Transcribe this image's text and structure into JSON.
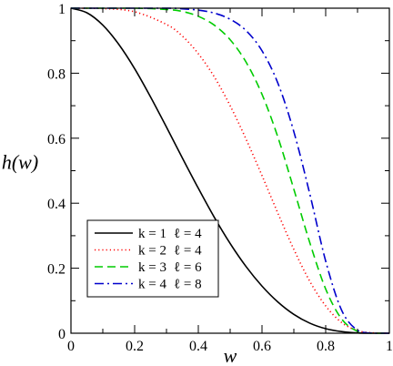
{
  "chart_data": {
    "type": "line",
    "title": "",
    "xlabel": "w",
    "ylabel": "h(w)",
    "xlim": [
      0,
      1
    ],
    "ylim": [
      0,
      1
    ],
    "x_ticks": [
      "0",
      "0.2",
      "0.4",
      "0.6",
      "0.8",
      "1"
    ],
    "y_ticks": [
      "0",
      "0.2",
      "0.4",
      "0.6",
      "0.8",
      "1"
    ],
    "grid": false,
    "legend_position": "bottom-left",
    "series": [
      {
        "name": "k = 1  ℓ = 4",
        "k_label": "k = 1",
        "l_label": "ℓ = 4",
        "color": "#000000",
        "dash": "solid",
        "x": [
          0,
          0.05,
          0.1,
          0.15,
          0.2,
          0.25,
          0.3,
          0.35,
          0.4,
          0.45,
          0.5,
          0.55,
          0.6,
          0.65,
          0.7,
          0.75,
          0.8,
          0.85,
          0.9,
          0.95,
          1.0
        ],
        "y": [
          1.0,
          0.986,
          0.948,
          0.889,
          0.814,
          0.727,
          0.634,
          0.539,
          0.446,
          0.357,
          0.276,
          0.205,
          0.145,
          0.096,
          0.058,
          0.031,
          0.014,
          0.005,
          0.001,
          0.0,
          0.0
        ]
      },
      {
        "name": "k = 2  ℓ = 4",
        "k_label": "k = 2",
        "l_label": "ℓ = 4",
        "color": "#ff0000",
        "dash": "dotted",
        "x": [
          0,
          0.1,
          0.2,
          0.3,
          0.35,
          0.4,
          0.45,
          0.5,
          0.55,
          0.6,
          0.65,
          0.7,
          0.75,
          0.8,
          0.85,
          0.9,
          0.95,
          1.0
        ],
        "y": [
          1.0,
          0.999,
          0.989,
          0.95,
          0.914,
          0.86,
          0.789,
          0.7,
          0.597,
          0.485,
          0.369,
          0.258,
          0.16,
          0.084,
          0.033,
          0.008,
          0.001,
          0.0
        ]
      },
      {
        "name": "k = 3  ℓ = 6",
        "k_label": "k = 3",
        "l_label": "ℓ = 6",
        "color": "#00cc00",
        "dash": "dashed",
        "x": [
          0,
          0.2,
          0.3,
          0.35,
          0.4,
          0.45,
          0.5,
          0.55,
          0.6,
          0.65,
          0.7,
          0.75,
          0.8,
          0.85,
          0.9,
          0.95,
          1.0
        ],
        "y": [
          1.0,
          1.0,
          0.996,
          0.99,
          0.975,
          0.948,
          0.903,
          0.834,
          0.735,
          0.603,
          0.443,
          0.279,
          0.136,
          0.044,
          0.006,
          0.0,
          0.0
        ]
      },
      {
        "name": "k = 4  ℓ = 8",
        "k_label": "k = 4",
        "l_label": "ℓ = 8",
        "color": "#0000cc",
        "dash": "dashdot",
        "x": [
          0,
          0.3,
          0.35,
          0.4,
          0.45,
          0.5,
          0.55,
          0.6,
          0.65,
          0.7,
          0.75,
          0.8,
          0.85,
          0.9,
          0.95,
          1.0
        ],
        "y": [
          1.0,
          1.0,
          0.998,
          0.994,
          0.985,
          0.966,
          0.931,
          0.869,
          0.769,
          0.62,
          0.429,
          0.222,
          0.071,
          0.009,
          0.0,
          0.0
        ]
      }
    ]
  }
}
